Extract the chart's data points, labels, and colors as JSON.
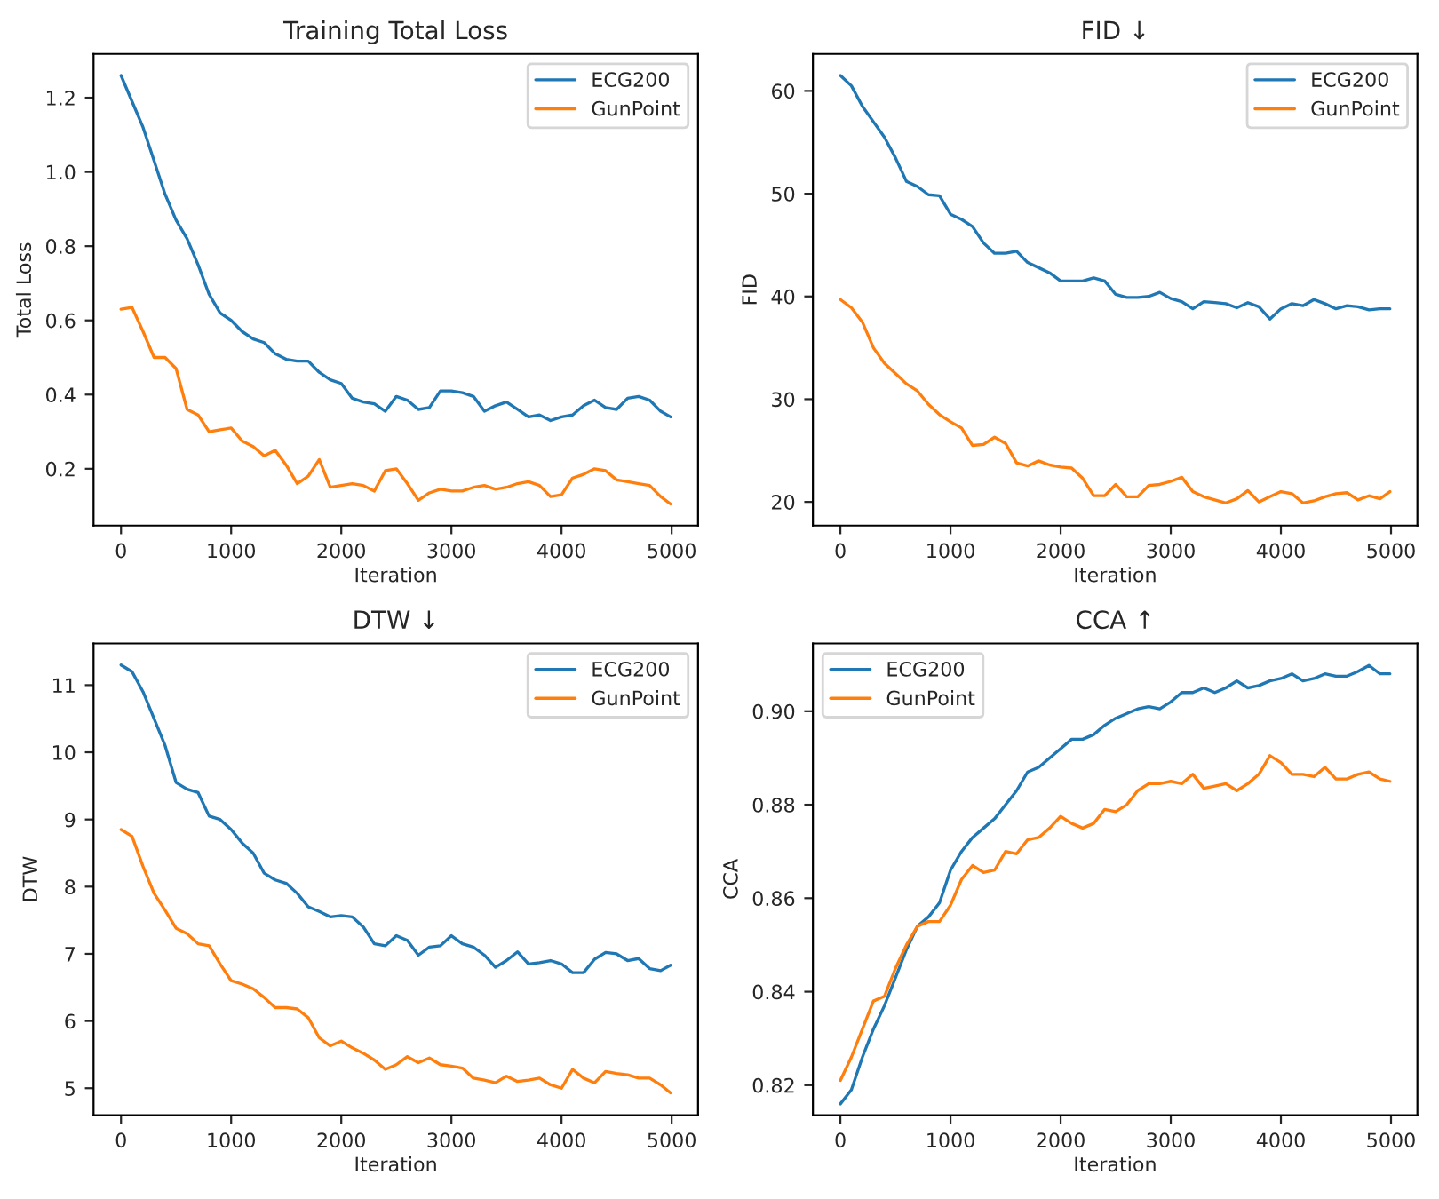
{
  "chart_data": [
    {
      "type": "line",
      "title": "Training Total Loss",
      "xlabel": "Iteration",
      "ylabel": "Total Loss",
      "legend": "top right",
      "grid": false,
      "x": [
        0,
        100,
        200,
        300,
        400,
        500,
        600,
        700,
        800,
        900,
        1000,
        1100,
        1200,
        1300,
        1400,
        1500,
        1600,
        1700,
        1800,
        1900,
        2000,
        2100,
        2200,
        2300,
        2400,
        2500,
        2600,
        2700,
        2800,
        2900,
        3000,
        3100,
        3200,
        3300,
        3400,
        3500,
        3600,
        3700,
        3800,
        3900,
        4000,
        4100,
        4200,
        4300,
        4400,
        4500,
        4600,
        4700,
        4800,
        4900,
        4990
      ],
      "xlim": [
        -249.5,
        5239.5
      ],
      "xticks": [
        0,
        1000,
        2000,
        3000,
        4000,
        5000
      ],
      "ylim": [
        0.047,
        1.318
      ],
      "yticks": [
        0.2,
        0.4,
        0.6,
        0.8,
        {
          "value": 1.0,
          "label": "1.0"
        },
        1.2
      ],
      "series": [
        {
          "name": "ECG200",
          "color": "#1f77b4",
          "values": [
            1.26,
            1.19,
            1.12,
            1.03,
            0.94,
            0.87,
            0.82,
            0.75,
            0.67,
            0.62,
            0.6,
            0.57,
            0.55,
            0.54,
            0.51,
            0.495,
            0.49,
            0.49,
            0.46,
            0.44,
            0.43,
            0.39,
            0.38,
            0.375,
            0.355,
            0.395,
            0.385,
            0.36,
            0.365,
            0.41,
            0.41,
            0.405,
            0.395,
            0.355,
            0.37,
            0.38,
            0.36,
            0.34,
            0.345,
            0.33,
            0.34,
            0.345,
            0.37,
            0.385,
            0.365,
            0.36,
            0.39,
            0.395,
            0.385,
            0.355,
            0.34
          ]
        },
        {
          "name": "GunPoint",
          "color": "#ff7f0e",
          "values": [
            0.63,
            0.635,
            0.57,
            0.5,
            0.5,
            0.47,
            0.36,
            0.345,
            0.3,
            0.305,
            0.31,
            0.275,
            0.26,
            0.235,
            0.25,
            0.21,
            0.16,
            0.18,
            0.225,
            0.15,
            0.155,
            0.16,
            0.155,
            0.14,
            0.195,
            0.2,
            0.16,
            0.115,
            0.135,
            0.145,
            0.14,
            0.14,
            0.15,
            0.155,
            0.145,
            0.15,
            0.16,
            0.165,
            0.155,
            0.125,
            0.13,
            0.175,
            0.185,
            0.2,
            0.195,
            0.17,
            0.165,
            0.16,
            0.155,
            0.125,
            0.105
          ]
        }
      ]
    },
    {
      "type": "line",
      "title": "FID ↓",
      "xlabel": "Iteration",
      "ylabel": "FID",
      "legend": "top right",
      "grid": false,
      "x": [
        0,
        100,
        200,
        300,
        400,
        500,
        600,
        700,
        800,
        900,
        1000,
        1100,
        1200,
        1300,
        1400,
        1500,
        1600,
        1700,
        1800,
        1900,
        2000,
        2100,
        2200,
        2300,
        2400,
        2500,
        2600,
        2700,
        2800,
        2900,
        3000,
        3100,
        3200,
        3300,
        3400,
        3500,
        3600,
        3700,
        3800,
        3900,
        4000,
        4100,
        4200,
        4300,
        4400,
        4500,
        4600,
        4700,
        4800,
        4900,
        4990
      ],
      "xlim": [
        -249.5,
        5239.5
      ],
      "xticks": [
        0,
        1000,
        2000,
        3000,
        4000,
        5000
      ],
      "ylim": [
        17.7,
        63.6
      ],
      "yticks": [
        20,
        30,
        40,
        50,
        60
      ],
      "series": [
        {
          "name": "ECG200",
          "color": "#1f77b4",
          "values": [
            61.5,
            60.5,
            58.5,
            57,
            55.5,
            53.5,
            51.2,
            50.7,
            49.9,
            49.8,
            48,
            47.5,
            46.8,
            45.2,
            44.2,
            44.2,
            44.4,
            43.3,
            42.8,
            42.3,
            41.5,
            41.5,
            41.5,
            41.8,
            41.5,
            40.2,
            39.9,
            39.9,
            40,
            40.4,
            39.8,
            39.5,
            38.8,
            39.5,
            39.4,
            39.3,
            38.9,
            39.4,
            39.0,
            37.8,
            38.8,
            39.3,
            39.1,
            39.7,
            39.3,
            38.8,
            39.1,
            39.0,
            38.7,
            38.8,
            38.8
          ]
        },
        {
          "name": "GunPoint",
          "color": "#ff7f0e",
          "values": [
            39.7,
            38.9,
            37.5,
            35,
            33.5,
            32.5,
            31.5,
            30.8,
            29.5,
            28.5,
            27.8,
            27.2,
            25.5,
            25.6,
            26.3,
            25.7,
            23.8,
            23.5,
            24,
            23.6,
            23.4,
            23.3,
            22.3,
            20.6,
            20.6,
            21.7,
            20.5,
            20.5,
            21.6,
            21.7,
            22,
            22.4,
            21,
            20.5,
            20.2,
            19.9,
            20.3,
            21.1,
            20,
            20.5,
            21,
            20.8,
            19.9,
            20.1,
            20.5,
            20.8,
            20.9,
            20.2,
            20.6,
            20.3,
            21.0
          ]
        }
      ]
    },
    {
      "type": "line",
      "title": "DTW ↓",
      "xlabel": "Iteration",
      "ylabel": "DTW",
      "legend": "top right",
      "grid": false,
      "x": [
        0,
        100,
        200,
        300,
        400,
        500,
        600,
        700,
        800,
        900,
        1000,
        1100,
        1200,
        1300,
        1400,
        1500,
        1600,
        1700,
        1800,
        1900,
        2000,
        2100,
        2200,
        2300,
        2400,
        2500,
        2600,
        2700,
        2800,
        2900,
        3000,
        3100,
        3200,
        3300,
        3400,
        3500,
        3600,
        3700,
        3800,
        3900,
        4000,
        4100,
        4200,
        4300,
        4400,
        4500,
        4600,
        4700,
        4800,
        4900,
        4990
      ],
      "xlim": [
        -249.5,
        5239.5
      ],
      "xticks": [
        0,
        1000,
        2000,
        3000,
        4000,
        5000
      ],
      "ylim": [
        4.6,
        11.62
      ],
      "yticks": [
        5,
        6,
        7,
        8,
        9,
        10,
        11
      ],
      "series": [
        {
          "name": "ECG200",
          "color": "#1f77b4",
          "values": [
            11.3,
            11.2,
            10.9,
            10.5,
            10.1,
            9.55,
            9.45,
            9.4,
            9.05,
            9.0,
            8.85,
            8.65,
            8.5,
            8.2,
            8.1,
            8.05,
            7.9,
            7.7,
            7.63,
            7.55,
            7.57,
            7.55,
            7.4,
            7.15,
            7.12,
            7.27,
            7.2,
            6.98,
            7.1,
            7.12,
            7.27,
            7.15,
            7.1,
            6.98,
            6.8,
            6.9,
            7.03,
            6.85,
            6.87,
            6.9,
            6.85,
            6.72,
            6.72,
            6.92,
            7.02,
            7.0,
            6.9,
            6.93,
            6.78,
            6.75,
            6.83
          ]
        },
        {
          "name": "GunPoint",
          "color": "#ff7f0e",
          "values": [
            8.85,
            8.75,
            8.3,
            7.9,
            7.65,
            7.38,
            7.3,
            7.15,
            7.12,
            6.85,
            6.6,
            6.55,
            6.48,
            6.35,
            6.2,
            6.2,
            6.18,
            6.05,
            5.75,
            5.63,
            5.7,
            5.6,
            5.52,
            5.42,
            5.28,
            5.35,
            5.47,
            5.38,
            5.45,
            5.35,
            5.33,
            5.3,
            5.15,
            5.12,
            5.08,
            5.18,
            5.1,
            5.12,
            5.15,
            5.05,
            5.0,
            5.28,
            5.15,
            5.08,
            5.25,
            5.22,
            5.2,
            5.15,
            5.15,
            5.05,
            4.93
          ]
        }
      ]
    },
    {
      "type": "line",
      "title": "CCA ↑",
      "xlabel": "Iteration",
      "ylabel": "CCA",
      "legend": "top left",
      "grid": false,
      "x": [
        0,
        100,
        200,
        300,
        400,
        500,
        600,
        700,
        800,
        900,
        1000,
        1100,
        1200,
        1300,
        1400,
        1500,
        1600,
        1700,
        1800,
        1900,
        2000,
        2100,
        2200,
        2300,
        2400,
        2500,
        2600,
        2700,
        2800,
        2900,
        3000,
        3100,
        3200,
        3300,
        3400,
        3500,
        3600,
        3700,
        3800,
        3900,
        4000,
        4100,
        4200,
        4300,
        4400,
        4500,
        4600,
        4700,
        4800,
        4900,
        4990
      ],
      "xlim": [
        -249.5,
        5239.5
      ],
      "xticks": [
        0,
        1000,
        2000,
        3000,
        4000,
        5000
      ],
      "ylim": [
        0.8136,
        0.9145
      ],
      "yticks": [
        0.82,
        0.84,
        0.86,
        0.88,
        {
          "value": 0.9,
          "label": "0.90"
        }
      ],
      "series": [
        {
          "name": "ECG200",
          "color": "#1f77b4",
          "values": [
            0.816,
            0.819,
            0.826,
            0.832,
            0.837,
            0.843,
            0.849,
            0.854,
            0.856,
            0.859,
            0.866,
            0.87,
            0.873,
            0.875,
            0.877,
            0.88,
            0.883,
            0.887,
            0.888,
            0.89,
            0.892,
            0.894,
            0.894,
            0.895,
            0.897,
            0.8985,
            0.8995,
            0.9005,
            0.901,
            0.9005,
            0.902,
            0.904,
            0.904,
            0.905,
            0.904,
            0.905,
            0.9065,
            0.905,
            0.9055,
            0.9065,
            0.907,
            0.908,
            0.9065,
            0.907,
            0.908,
            0.9075,
            0.9075,
            0.9085,
            0.9098,
            0.908,
            0.908
          ]
        },
        {
          "name": "GunPoint",
          "color": "#ff7f0e",
          "values": [
            0.821,
            0.826,
            0.832,
            0.838,
            0.839,
            0.845,
            0.85,
            0.854,
            0.855,
            0.855,
            0.8585,
            0.864,
            0.867,
            0.8655,
            0.866,
            0.87,
            0.8695,
            0.8725,
            0.873,
            0.875,
            0.8775,
            0.876,
            0.875,
            0.876,
            0.879,
            0.8785,
            0.88,
            0.883,
            0.8845,
            0.8845,
            0.885,
            0.8845,
            0.8865,
            0.8835,
            0.884,
            0.8845,
            0.883,
            0.8845,
            0.8865,
            0.8905,
            0.889,
            0.8865,
            0.8865,
            0.886,
            0.888,
            0.8855,
            0.8855,
            0.8865,
            0.887,
            0.8855,
            0.885
          ]
        }
      ]
    }
  ]
}
